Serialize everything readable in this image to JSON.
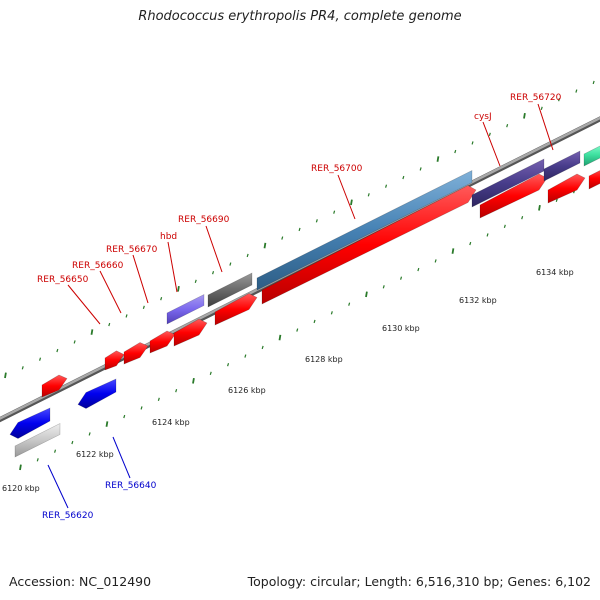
{
  "title": "Rhodococcus erythropolis PR4, complete genome",
  "footer": {
    "accession": "Accession: NC_012490",
    "meta": "Topology: circular; Length: 6,516,310 bp; Genes: 6,102"
  },
  "colors": {
    "forward_label": "#cc0000",
    "reverse_label": "#0000cc",
    "tick": "#2a7a2a",
    "backbone": "#8a8a8a"
  },
  "scale_labels": [
    "6120 kbp",
    "6122 kbp",
    "6124 kbp",
    "6126 kbp",
    "6128 kbp",
    "6130 kbp",
    "6132 kbp",
    "6134 kbp"
  ],
  "gene_labels": [
    {
      "text": "RER_56620",
      "strand": "reverse"
    },
    {
      "text": "RER_56640",
      "strand": "reverse"
    },
    {
      "text": "RER_56650",
      "strand": "forward"
    },
    {
      "text": "RER_56660",
      "strand": "forward"
    },
    {
      "text": "RER_56670",
      "strand": "forward"
    },
    {
      "text": "hbd",
      "strand": "forward"
    },
    {
      "text": "RER_56690",
      "strand": "forward"
    },
    {
      "text": "RER_56700",
      "strand": "forward"
    },
    {
      "text": "cysJ",
      "strand": "forward"
    },
    {
      "text": "RER_56720",
      "strand": "forward"
    }
  ]
}
